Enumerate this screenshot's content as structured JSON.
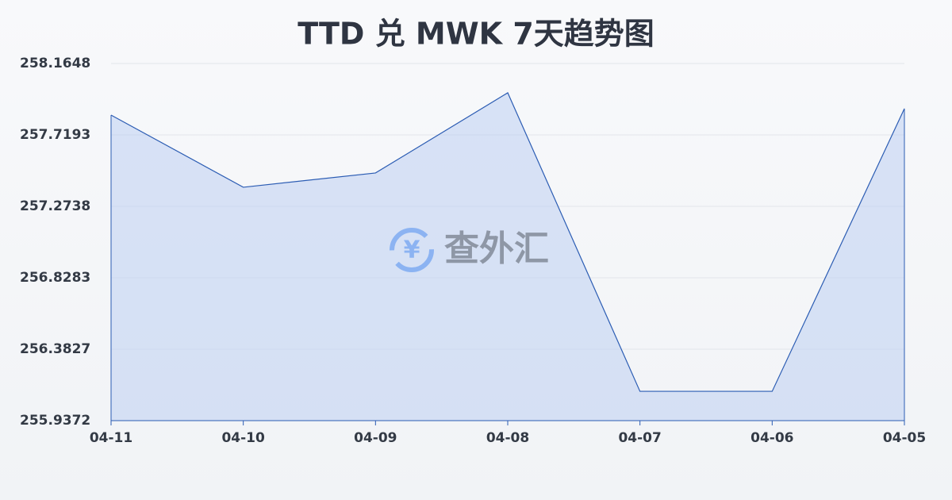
{
  "chart_data": {
    "type": "area",
    "title": "TTD 兑 MWK 7天趋势图",
    "categories": [
      "04-11",
      "04-10",
      "04-09",
      "04-08",
      "04-07",
      "04-06",
      "04-05"
    ],
    "series": [
      {
        "name": "TTD/MWK",
        "color": "#2b5cb3",
        "values": [
          257.843,
          257.393,
          257.482,
          257.982,
          256.12,
          256.12,
          257.883
        ]
      }
    ],
    "ylim": [
      255.9372,
      258.1648
    ],
    "yticks": [
      255.9372,
      256.3827,
      256.8283,
      257.2738,
      257.7193,
      258.1648
    ],
    "grid": true,
    "watermark": "查外汇",
    "watermark_symbol": "¥"
  }
}
